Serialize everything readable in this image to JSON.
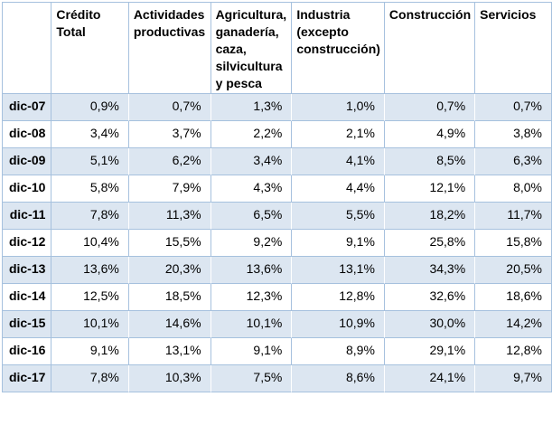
{
  "table": {
    "corner_label": "",
    "columns": [
      "Crédito Total",
      "Actividades productivas",
      "Agricultura, ganadería, caza, silvicultura y pesca",
      "Industria (excepto construcción)",
      "Construcción",
      "Servicios"
    ],
    "rows": [
      {
        "label": "dic-07",
        "values": [
          "0,9%",
          "0,7%",
          "1,3%",
          "1,0%",
          "0,7%",
          "0,7%"
        ]
      },
      {
        "label": "dic-08",
        "values": [
          "3,4%",
          "3,7%",
          "2,2%",
          "2,1%",
          "4,9%",
          "3,8%"
        ]
      },
      {
        "label": "dic-09",
        "values": [
          "5,1%",
          "6,2%",
          "3,4%",
          "4,1%",
          "8,5%",
          "6,3%"
        ]
      },
      {
        "label": "dic-10",
        "values": [
          "5,8%",
          "7,9%",
          "4,3%",
          "4,4%",
          "12,1%",
          "8,0%"
        ]
      },
      {
        "label": "dic-11",
        "values": [
          "7,8%",
          "11,3%",
          "6,5%",
          "5,5%",
          "18,2%",
          "11,7%"
        ]
      },
      {
        "label": "dic-12",
        "values": [
          "10,4%",
          "15,5%",
          "9,2%",
          "9,1%",
          "25,8%",
          "15,8%"
        ]
      },
      {
        "label": "dic-13",
        "values": [
          "13,6%",
          "20,3%",
          "13,6%",
          "13,1%",
          "34,3%",
          "20,5%"
        ]
      },
      {
        "label": "dic-14",
        "values": [
          "12,5%",
          "18,5%",
          "12,3%",
          "12,8%",
          "32,6%",
          "18,6%"
        ]
      },
      {
        "label": "dic-15",
        "values": [
          "10,1%",
          "14,6%",
          "10,1%",
          "10,9%",
          "30,0%",
          "14,2%"
        ]
      },
      {
        "label": "dic-16",
        "values": [
          "9,1%",
          "13,1%",
          "9,1%",
          "8,9%",
          "29,1%",
          "12,8%"
        ]
      },
      {
        "label": "dic-17",
        "values": [
          "7,8%",
          "10,3%",
          "7,5%",
          "8,6%",
          "24,1%",
          "9,7%"
        ]
      }
    ],
    "colors": {
      "band_fill": "#DCE6F1",
      "border": "#A6C1DE",
      "text": "#000000",
      "background": "#FFFFFF"
    }
  },
  "chart_data": {
    "type": "table",
    "title": "",
    "unit": "%",
    "decimal_separator": ",",
    "categories": [
      "dic-07",
      "dic-08",
      "dic-09",
      "dic-10",
      "dic-11",
      "dic-12",
      "dic-13",
      "dic-14",
      "dic-15",
      "dic-16",
      "dic-17"
    ],
    "series": [
      {
        "name": "Crédito Total",
        "values": [
          0.9,
          3.4,
          5.1,
          5.8,
          7.8,
          10.4,
          13.6,
          12.5,
          10.1,
          9.1,
          7.8
        ]
      },
      {
        "name": "Actividades productivas",
        "values": [
          0.7,
          3.7,
          6.2,
          7.9,
          11.3,
          15.5,
          20.3,
          18.5,
          14.6,
          13.1,
          10.3
        ]
      },
      {
        "name": "Agricultura, ganadería, caza, silvicultura y pesca",
        "values": [
          1.3,
          2.2,
          3.4,
          4.3,
          6.5,
          9.2,
          13.6,
          12.3,
          10.1,
          9.1,
          7.5
        ]
      },
      {
        "name": "Industria (excepto construcción)",
        "values": [
          1.0,
          2.1,
          4.1,
          4.4,
          5.5,
          9.1,
          13.1,
          12.8,
          10.9,
          8.9,
          8.6
        ]
      },
      {
        "name": "Construcción",
        "values": [
          0.7,
          4.9,
          8.5,
          12.1,
          18.2,
          25.8,
          34.3,
          32.6,
          30.0,
          29.1,
          24.1
        ]
      },
      {
        "name": "Servicios",
        "values": [
          0.7,
          3.8,
          6.3,
          8.0,
          11.7,
          15.8,
          20.5,
          18.6,
          14.2,
          12.8,
          9.7
        ]
      }
    ]
  }
}
